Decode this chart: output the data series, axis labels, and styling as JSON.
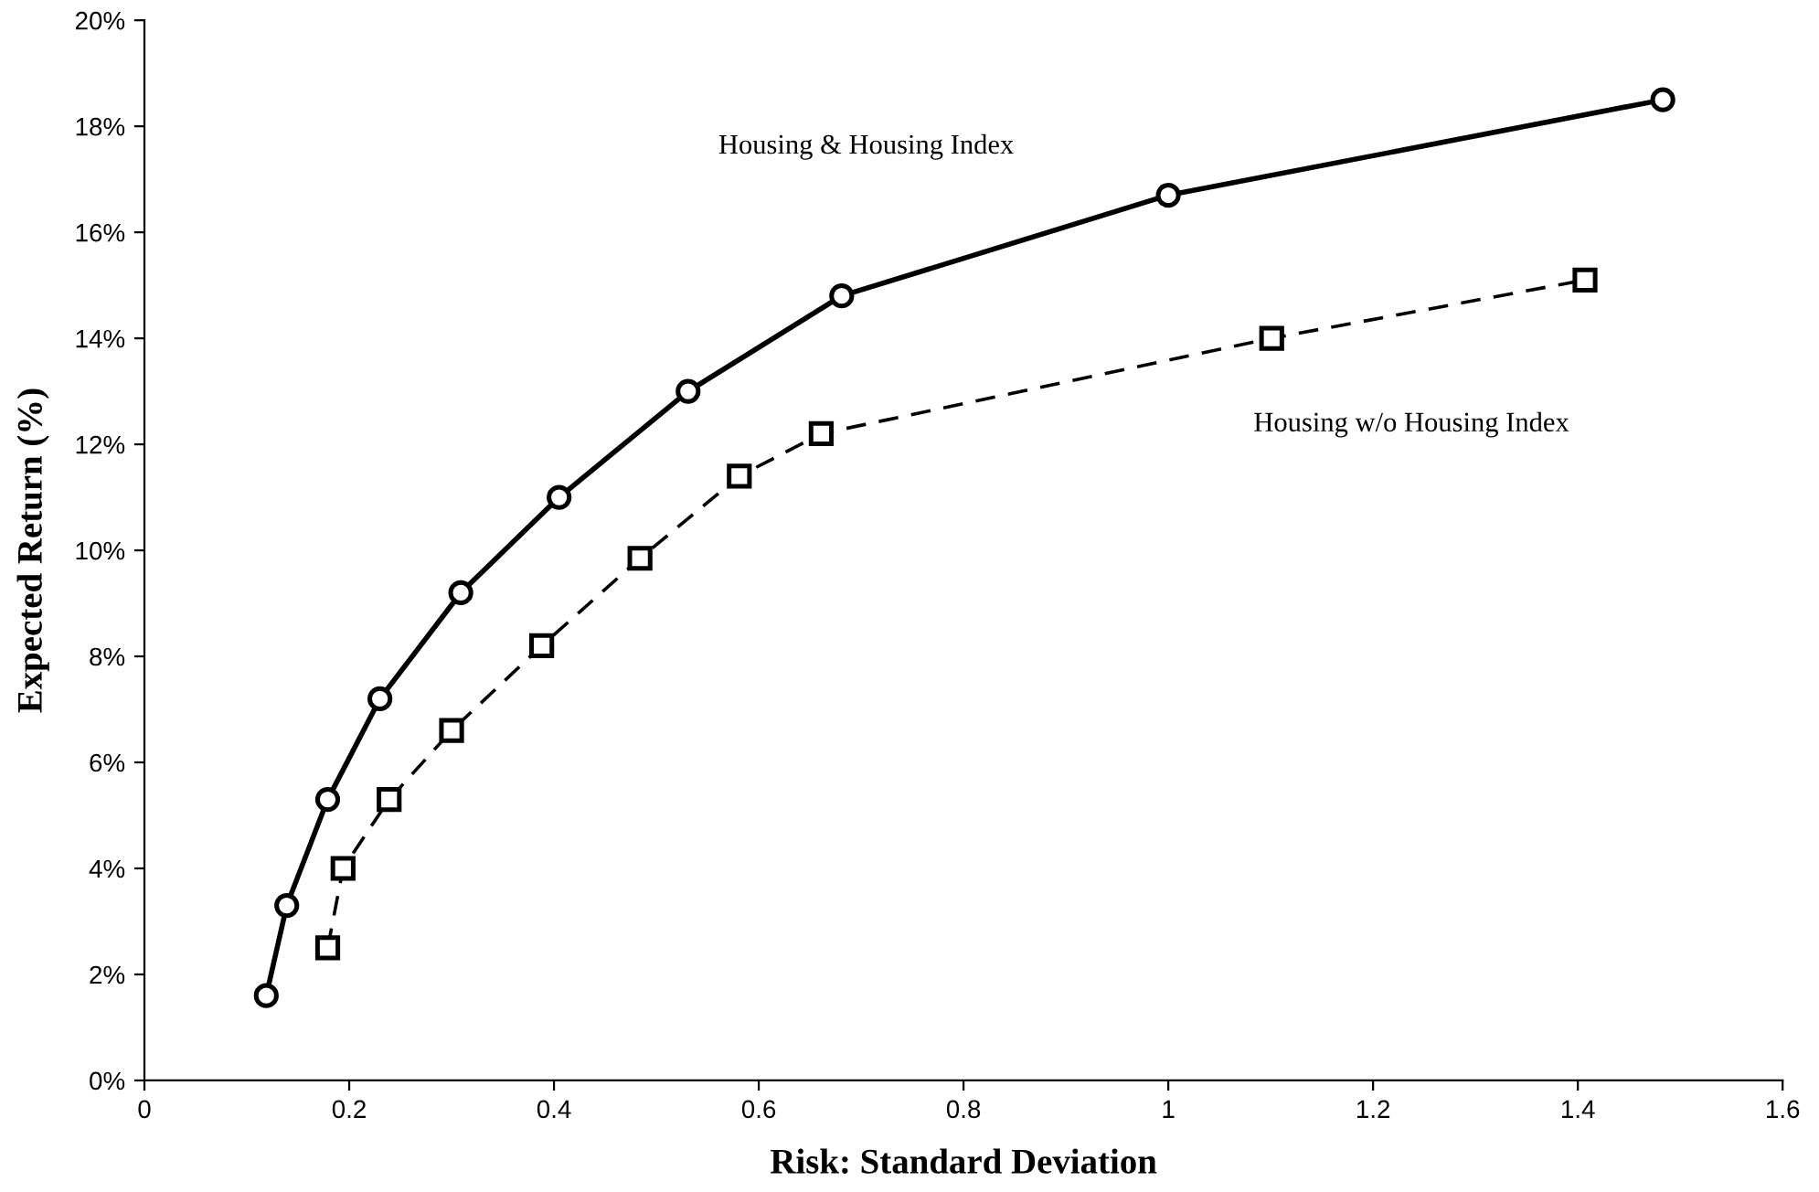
{
  "chart_data": {
    "type": "line",
    "xlabel": "Risk: Standard Deviation",
    "ylabel": "Expected Return (%)",
    "xlim": [
      0,
      1.6
    ],
    "xticks": [
      0,
      0.2,
      0.4,
      0.6,
      0.8,
      1,
      1.2,
      1.4,
      1.6
    ],
    "ylim": [
      0,
      20
    ],
    "yticks": [
      {
        "value": 0,
        "label": "0%"
      },
      {
        "value": 2,
        "label": "2%"
      },
      {
        "value": 4,
        "label": "4%"
      },
      {
        "value": 6,
        "label": "6%"
      },
      {
        "value": 8,
        "label": "8%"
      },
      {
        "value": 10,
        "label": "10%"
      },
      {
        "value": 12,
        "label": "12%"
      },
      {
        "value": 14,
        "label": "14%"
      },
      {
        "value": 16,
        "label": "16%"
      },
      {
        "value": 18,
        "label": "18%"
      },
      {
        "value": 20,
        "label": "20%"
      }
    ],
    "grid": false,
    "legend": false,
    "series": [
      {
        "name": "Housing & Housing Index",
        "color": "#000000",
        "marker": "circle",
        "line_style": "solid",
        "x": [
          0.119,
          0.139,
          0.179,
          0.23,
          0.309,
          0.405,
          0.531,
          0.681,
          1.0,
          1.483
        ],
        "values": [
          1.6,
          3.3,
          5.3,
          7.2,
          9.2,
          11.0,
          13.0,
          14.8,
          16.7,
          18.5
        ]
      },
      {
        "name": "Housing w/o Housing Index",
        "color": "#000000",
        "marker": "square",
        "line_style": "dashed",
        "x": [
          0.179,
          0.194,
          0.239,
          0.3,
          0.388,
          0.484,
          0.581,
          0.661,
          1.101,
          1.407
        ],
        "values": [
          2.5,
          4.0,
          5.3,
          6.6,
          8.2,
          9.85,
          11.4,
          12.2,
          14.0,
          15.1
        ]
      }
    ]
  }
}
